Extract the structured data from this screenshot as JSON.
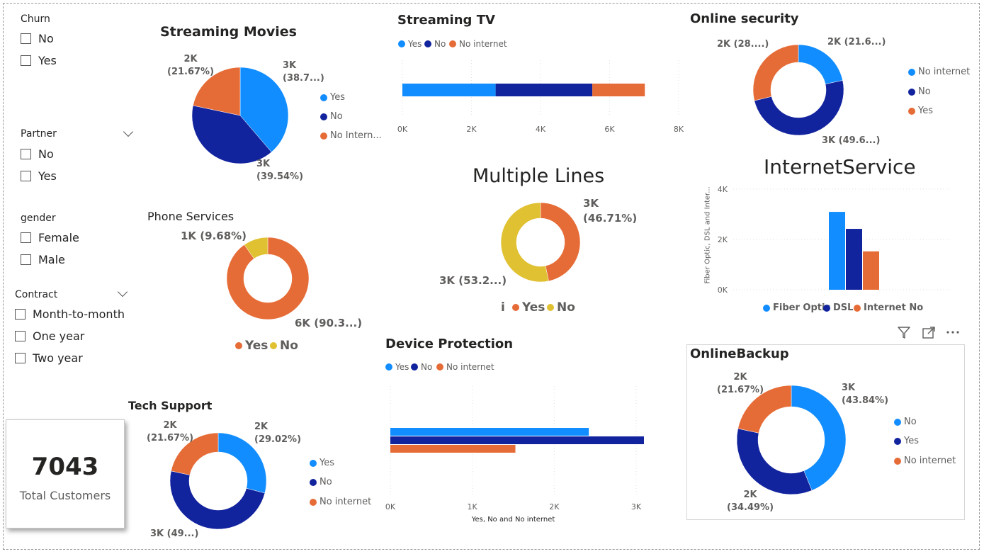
{
  "colors": {
    "blue": "#118dff",
    "navy": "#12239e",
    "orange": "#e66c37",
    "yellow": "#e0c132"
  },
  "slicers": {
    "churn": {
      "title": "Churn",
      "items": [
        "No",
        "Yes"
      ]
    },
    "partner": {
      "title": "Partner",
      "items": [
        "No",
        "Yes"
      ]
    },
    "gender": {
      "title": "gender",
      "items": [
        "Female",
        "Male"
      ]
    },
    "contract": {
      "title": "Contract",
      "items": [
        "Month-to-month",
        "One year",
        "Two year"
      ]
    }
  },
  "card": {
    "value": "7043",
    "label": "Total Customers"
  },
  "toolbar_icons": [
    "filter-icon",
    "focus-mode-icon",
    "more-options-icon"
  ],
  "chart_data": [
    {
      "id": "streaming_movies",
      "type": "pie",
      "title": "Streaming Movies",
      "legend": [
        "Yes",
        "No",
        "No Intern..."
      ],
      "slices": [
        {
          "name": "Yes",
          "value": 38.7,
          "label": "3K\n(38.7...)",
          "color": "#118dff"
        },
        {
          "name": "No",
          "value": 39.54,
          "label": "3K\n(39.54%)",
          "color": "#12239e"
        },
        {
          "name": "No Internet",
          "value": 21.67,
          "label": "2K\n(21.67%)",
          "color": "#e66c37"
        }
      ]
    },
    {
      "id": "streaming_tv",
      "type": "bar",
      "title": "Streaming TV",
      "legend": [
        "Yes",
        "No",
        "No internet"
      ],
      "series": [
        {
          "name": "Yes",
          "value": 2700
        },
        {
          "name": "No",
          "value": 2800
        },
        {
          "name": "No internet",
          "value": 1520
        }
      ],
      "stacked": true,
      "xlim": [
        0,
        8000
      ],
      "xticks": [
        "0K",
        "2K",
        "4K",
        "6K",
        "8K"
      ]
    },
    {
      "id": "online_security",
      "type": "pie",
      "title": "Online security",
      "legend": [
        "No internet",
        "No",
        "Yes"
      ],
      "slices": [
        {
          "name": "No internet",
          "value": 21.6,
          "label": "2K (21.6...)",
          "color": "#118dff"
        },
        {
          "name": "No",
          "value": 49.6,
          "label": "3K (49.6...)",
          "color": "#12239e"
        },
        {
          "name": "Yes",
          "value": 28.8,
          "label": "2K (28....)",
          "color": "#e66c37"
        }
      ]
    },
    {
      "id": "phone_services",
      "type": "pie",
      "title": "Phone Services",
      "legend": [
        "Yes",
        "No"
      ],
      "slices": [
        {
          "name": "Yes",
          "value": 90.32,
          "label": "6K (90.3...)",
          "color": "#e66c37"
        },
        {
          "name": "No",
          "value": 9.68,
          "label": "1K (9.68%)",
          "color": "#e0c132"
        }
      ]
    },
    {
      "id": "multiple_lines",
      "type": "pie",
      "title": "Multiple Lines",
      "legend": [
        "i",
        "Yes",
        "No"
      ],
      "slices": [
        {
          "name": "Yes",
          "value": 46.71,
          "label": "3K\n(46.71%)",
          "color": "#e66c37"
        },
        {
          "name": "No",
          "value": 53.29,
          "label": "3K (53.2...)",
          "color": "#e0c132"
        }
      ]
    },
    {
      "id": "internet_service",
      "type": "bar",
      "title": "InternetService",
      "ylabel": "Fiber Optic, DSL and Inter...",
      "legend": [
        "Fiber Optic",
        "DSL",
        "Internet No"
      ],
      "series": [
        {
          "name": "Fiber Optic",
          "value": 3096
        },
        {
          "name": "DSL",
          "value": 2421
        },
        {
          "name": "Internet No",
          "value": 1526
        }
      ],
      "ylim": [
        0,
        4000
      ],
      "yticks": [
        "0K",
        "2K",
        "4K"
      ]
    },
    {
      "id": "device_protection",
      "type": "bar",
      "title": "Device Protection",
      "xlabel": "Yes, No and No internet",
      "legend": [
        "Yes",
        "No",
        "No internet"
      ],
      "series": [
        {
          "name": "Yes",
          "value": 2422
        },
        {
          "name": "No",
          "value": 3095
        },
        {
          "name": "No internet",
          "value": 1526
        }
      ],
      "xlim": [
        0,
        3000
      ],
      "xticks": [
        "0K",
        "1K",
        "2K",
        "3K"
      ]
    },
    {
      "id": "tech_support",
      "type": "pie",
      "title": "Tech Support",
      "legend": [
        "Yes",
        "No",
        "No internet"
      ],
      "slices": [
        {
          "name": "Yes",
          "value": 29.02,
          "label": "2K\n(29.02%)",
          "color": "#118dff"
        },
        {
          "name": "No",
          "value": 49.31,
          "label": "3K (49...)",
          "color": "#12239e"
        },
        {
          "name": "No internet",
          "value": 21.67,
          "label": "2K\n(21.67%)",
          "color": "#e66c37"
        }
      ]
    },
    {
      "id": "online_backup",
      "type": "pie",
      "title": "OnlineBackup",
      "legend": [
        "No",
        "Yes",
        "No internet"
      ],
      "slices": [
        {
          "name": "No",
          "value": 43.84,
          "label": "3K\n(43.84%)",
          "color": "#118dff"
        },
        {
          "name": "Yes",
          "value": 34.49,
          "label": "2K\n(34.49%)",
          "color": "#12239e"
        },
        {
          "name": "No internet",
          "value": 21.67,
          "label": "2K\n(21.67%)",
          "color": "#e66c37"
        }
      ]
    }
  ]
}
